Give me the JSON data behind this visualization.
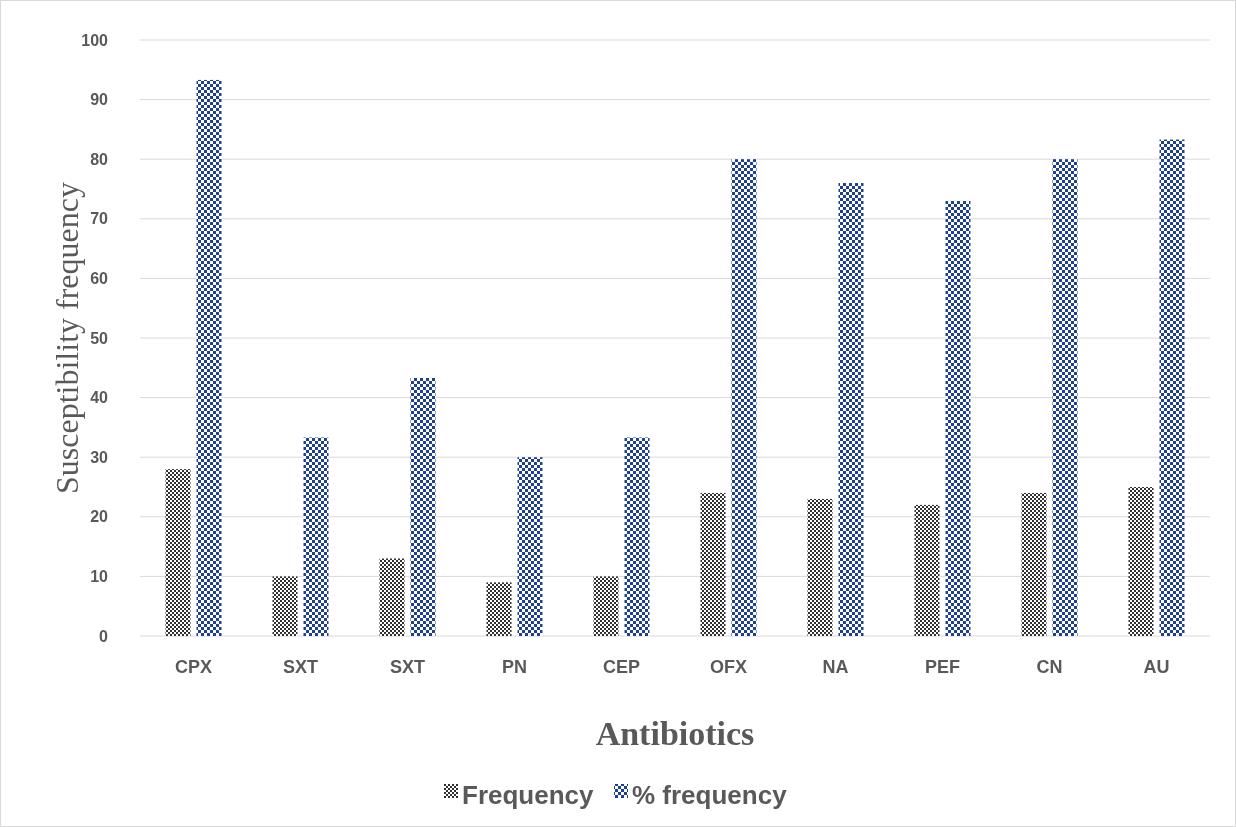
{
  "chart_data": {
    "type": "bar",
    "xlabel": "Antibiotics",
    "ylabel": "Susceptibility frequency",
    "categories": [
      "CPX",
      "SXT",
      "SXT",
      "PN",
      "CEP",
      "OFX",
      "NA",
      "PEF",
      "CN",
      "AU"
    ],
    "series": [
      {
        "name": "Frequency",
        "color": "#303030",
        "values": [
          28,
          10,
          13,
          9,
          10,
          24,
          23,
          22,
          24,
          25
        ]
      },
      {
        "name": "% frequency",
        "color": "#1f3f8f",
        "values": [
          93.3,
          33.3,
          43.3,
          30,
          33.3,
          80,
          76,
          73,
          80,
          83.3
        ]
      }
    ],
    "ylim": [
      0,
      100
    ],
    "yticks": [
      0,
      10,
      20,
      30,
      40,
      50,
      60,
      70,
      80,
      90,
      100
    ],
    "grid": "y",
    "legend": "bottom"
  }
}
